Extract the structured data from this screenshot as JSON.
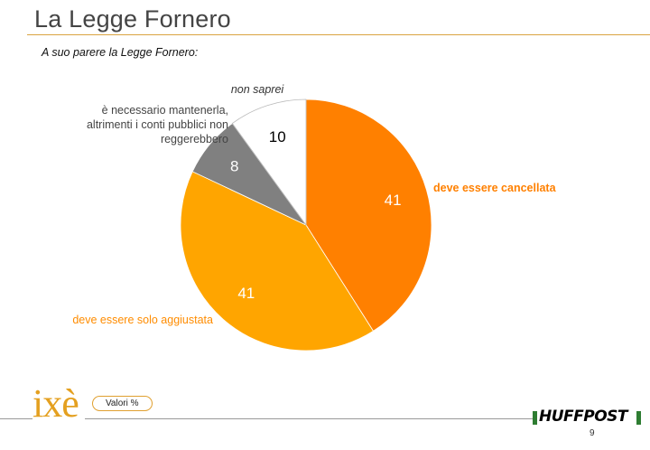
{
  "slide": {
    "title": "La Legge Fornero",
    "subtitle": "A suo parere la Legge Fornero:",
    "valori_label": "Valori %",
    "page_number": "9",
    "logo_text": "ixè",
    "brand_text": "HUFFPOST"
  },
  "chart_data": {
    "type": "pie",
    "title": "",
    "slices": [
      {
        "label": "deve essere cancellata",
        "value": 41,
        "color": "#ff8000",
        "label_color": "#ff8000"
      },
      {
        "label": "deve essere solo aggiustata",
        "value": 41,
        "color": "#ffa500",
        "label_color": "#ff8c00"
      },
      {
        "label": "è necessario mantenerla, altrimenti i conti pubblici non reggerebbero",
        "value": 8,
        "color": "#808080",
        "label_color": "#444444"
      },
      {
        "label": "non saprei",
        "value": 10,
        "color": "#ffffff",
        "label_color": "#333333"
      }
    ],
    "start_angle_deg": 0,
    "direction": "clockwise",
    "value_label_colors": [
      "#ffffff",
      "#ffffff",
      "#ffffff",
      "#000000"
    ]
  }
}
